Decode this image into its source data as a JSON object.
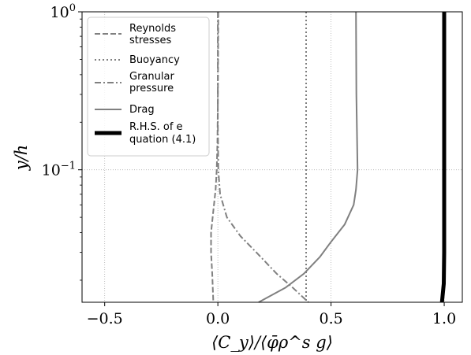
{
  "chart_data": {
    "type": "line",
    "title": "",
    "xlabel": "⟨C_y⟩/⟨φ̄ρ^s g⟩",
    "ylabel": "y/h",
    "xlim": [
      -0.6,
      1.08
    ],
    "ylim": [
      0.0145,
      1.0
    ],
    "yscale": "log",
    "grid": true,
    "legend_position": "top-left",
    "x_ticks": [
      {
        "value": -0.5,
        "label": "−0.5"
      },
      {
        "value": 0.0,
        "label": "0.0"
      },
      {
        "value": 0.5,
        "label": "0.5"
      },
      {
        "value": 1.0,
        "label": "1.0"
      }
    ],
    "y_ticks": [
      {
        "value": 1.0,
        "base": "10",
        "exp": "0"
      },
      {
        "value": 0.1,
        "base": "10",
        "exp": "−1"
      }
    ],
    "series": [
      {
        "name": "Reynolds stresses",
        "style": "dashed",
        "color": "#808080",
        "points": [
          [
            0.002,
            1.0
          ],
          [
            0.001,
            0.5
          ],
          [
            0.0,
            0.25
          ],
          [
            -0.002,
            0.15
          ],
          [
            -0.005,
            0.1
          ],
          [
            -0.01,
            0.075
          ],
          [
            -0.02,
            0.055
          ],
          [
            -0.03,
            0.04
          ],
          [
            -0.03,
            0.03
          ],
          [
            -0.025,
            0.022
          ],
          [
            -0.02,
            0.0145
          ]
        ]
      },
      {
        "name": "Buoyancy",
        "style": "dotted",
        "color": "#808080",
        "points": [
          [
            0.39,
            1.0
          ],
          [
            0.39,
            0.03
          ],
          [
            0.39,
            0.0145
          ]
        ]
      },
      {
        "name": "Granular pressure",
        "style": "dashdot",
        "color": "#808080",
        "points": [
          [
            0.0,
            1.0
          ],
          [
            0.0,
            0.2
          ],
          [
            0.002,
            0.1
          ],
          [
            0.01,
            0.07
          ],
          [
            0.04,
            0.05
          ],
          [
            0.1,
            0.038
          ],
          [
            0.17,
            0.03
          ],
          [
            0.26,
            0.022
          ],
          [
            0.33,
            0.018
          ],
          [
            0.4,
            0.0145
          ]
        ]
      },
      {
        "name": "Drag",
        "style": "solid",
        "color": "#808080",
        "points": [
          [
            0.61,
            1.0
          ],
          [
            0.612,
            0.3
          ],
          [
            0.617,
            0.1
          ],
          [
            0.61,
            0.075
          ],
          [
            0.6,
            0.06
          ],
          [
            0.56,
            0.045
          ],
          [
            0.5,
            0.035
          ],
          [
            0.45,
            0.028
          ],
          [
            0.38,
            0.022
          ],
          [
            0.3,
            0.018
          ],
          [
            0.18,
            0.0145
          ]
        ]
      },
      {
        "name": "R.H.S. of equation (4.1)",
        "style": "thick",
        "color": "#000000",
        "points": [
          [
            1.0,
            1.0
          ],
          [
            1.0,
            0.1
          ],
          [
            1.0,
            0.03
          ],
          [
            0.998,
            0.019
          ],
          [
            0.99,
            0.0145
          ]
        ]
      }
    ]
  }
}
